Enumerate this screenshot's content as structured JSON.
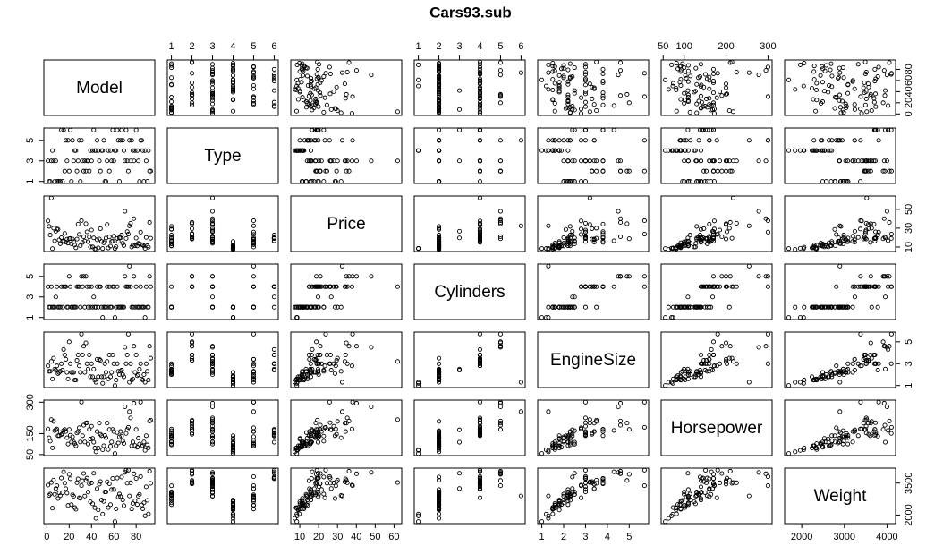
{
  "chart_data": {
    "type": "scatter-matrix",
    "title": "Cars93.sub",
    "point_color": "#000000",
    "variables": [
      {
        "name": "Model",
        "lim": [
          -2.7,
          96.7
        ],
        "xticks": [
          0,
          20,
          40,
          60,
          80
        ],
        "yticks": [
          0,
          20,
          40,
          60,
          80
        ],
        "values": [
          49,
          54,
          9,
          1,
          6,
          24,
          56,
          73,
          72,
          35,
          78,
          22,
          30,
          17,
          58,
          59,
          15,
          20,
          31,
          27,
          52,
          48,
          26,
          79,
          83,
          21,
          37,
          84,
          86,
          93,
          44,
          41,
          90,
          64,
          68,
          13,
          89,
          33,
          61,
          85,
          66,
          25,
          11,
          43,
          39,
          76,
          82,
          70,
          40,
          75,
          28,
          92,
          5,
          69,
          7,
          63,
          74,
          2,
          4,
          19,
          32,
          62,
          36,
          77,
          14,
          71,
          60,
          12,
          34,
          80,
          38,
          51,
          55,
          87,
          45,
          47,
          16,
          10,
          81,
          50,
          57,
          53,
          88,
          91,
          23,
          18,
          67,
          46,
          42,
          65,
          29,
          3,
          8
        ]
      },
      {
        "name": "Type",
        "lim": [
          0.8,
          6.2
        ],
        "xticks": [
          1,
          2,
          3,
          4,
          5,
          6
        ],
        "yticks": [
          1,
          3,
          5
        ],
        "values": [
          4,
          3,
          1,
          3,
          3,
          3,
          2,
          2,
          3,
          2,
          3,
          1,
          1,
          5,
          3,
          6,
          6,
          2,
          5,
          2,
          1,
          2,
          4,
          4,
          1,
          6,
          3,
          5,
          4,
          2,
          4,
          4,
          1,
          5,
          5,
          6,
          3,
          2,
          4,
          5,
          5,
          4,
          1,
          4,
          4,
          5,
          3,
          3,
          3,
          3,
          3,
          2,
          4,
          4,
          1,
          6,
          5,
          1,
          3,
          5,
          3,
          4,
          3,
          4,
          1,
          6,
          3,
          1,
          3,
          6,
          2,
          5,
          4,
          1,
          5,
          3,
          2,
          1,
          4,
          4,
          4,
          1,
          4,
          4,
          5,
          3,
          6,
          4,
          6,
          1,
          5,
          1,
          3
        ]
      },
      {
        "name": "Price",
        "lim": [
          5.22,
          64.08
        ],
        "xticks": [
          10,
          20,
          30,
          40,
          50,
          60
        ],
        "yticks": [
          10,
          30,
          50
        ],
        "values": [
          15.9,
          33.9,
          29.1,
          37.7,
          30,
          15.7,
          20.8,
          23.7,
          26.3,
          34.7,
          40.1,
          13.4,
          11.4,
          15.1,
          15.9,
          16.3,
          16.6,
          18.8,
          38,
          18.4,
          15.8,
          29.5,
          9.2,
          11.3,
          13.3,
          19,
          15.6,
          25.8,
          12.2,
          19.3,
          7.4,
          10.1,
          11.3,
          15.9,
          14,
          19.9,
          20.2,
          20.9,
          8.4,
          12.5,
          19.8,
          12.1,
          17.5,
          8,
          10,
          10,
          13.9,
          47.9,
          28,
          35.2,
          34.3,
          36.1,
          8.3,
          11.6,
          16.5,
          19.1,
          32.5,
          31.9,
          61.9,
          14.1,
          14.9,
          10.3,
          26.1,
          11.8,
          15.7,
          19.1,
          21.5,
          13.5,
          16.3,
          19.5,
          20.7,
          14.4,
          9,
          11.1,
          17.7,
          18.5,
          24.4,
          28.7,
          11.1,
          8.4,
          10.9,
          19.5,
          8.6,
          9.8,
          18.4,
          18.2,
          22.7,
          9.1,
          19.7,
          20,
          23.3,
          22.7,
          26.7
        ]
      },
      {
        "name": "Cylinders",
        "lim": [
          0.8,
          6.2
        ],
        "xticks": [
          1,
          2,
          3,
          4,
          5,
          6
        ],
        "yticks": [
          1,
          3,
          5
        ],
        "values": [
          2,
          4,
          4,
          4,
          2,
          2,
          4,
          4,
          4,
          5,
          5,
          2,
          2,
          4,
          2,
          4,
          4,
          5,
          5,
          4,
          2,
          4,
          2,
          2,
          2,
          4,
          2,
          4,
          2,
          4,
          2,
          2,
          2,
          2,
          2,
          4,
          4,
          5,
          1,
          2,
          2,
          2,
          2,
          2,
          2,
          2,
          2,
          5,
          4,
          4,
          4,
          5,
          2,
          2,
          2,
          4,
          6,
          2,
          4,
          2,
          4,
          2,
          4,
          2,
          2,
          4,
          4,
          2,
          2,
          4,
          4,
          2,
          2,
          2,
          4,
          4,
          4,
          2,
          2,
          1,
          2,
          2,
          1,
          2,
          2,
          2,
          2,
          2,
          3,
          2,
          4,
          2,
          3
        ]
      },
      {
        "name": "EngineSize",
        "lim": [
          0.812,
          5.888
        ],
        "xticks": [
          1,
          2,
          3,
          4,
          5
        ],
        "yticks": [
          1,
          3,
          5
        ],
        "values": [
          1.8,
          3.2,
          2.8,
          2.8,
          3.5,
          2.2,
          3.8,
          5.7,
          3.8,
          4.9,
          4.6,
          2.2,
          2.2,
          3.4,
          2.2,
          3.8,
          4.3,
          5,
          5.7,
          3.3,
          3,
          3.3,
          1.5,
          2.2,
          2.5,
          3,
          2.5,
          3,
          1.5,
          3.5,
          1.3,
          1.8,
          2.3,
          2.3,
          2,
          3,
          3,
          4.6,
          1,
          1.6,
          2.3,
          1.5,
          2.2,
          1.5,
          1.8,
          1.5,
          2,
          4.5,
          3,
          3,
          3.8,
          4.6,
          1.6,
          1.8,
          2.5,
          3,
          1.3,
          2.3,
          3.2,
          1.6,
          3.8,
          1.5,
          3,
          1.6,
          2.4,
          3,
          3,
          2.3,
          2.2,
          3.8,
          3.8,
          1.8,
          1.6,
          2,
          3.4,
          3.4,
          3.8,
          2.1,
          1.9,
          1.2,
          1.8,
          2.2,
          1.3,
          1.5,
          2.2,
          2.2,
          2.4,
          1.8,
          2.5,
          2,
          2.8,
          2.3,
          2.4
        ]
      },
      {
        "name": "Horsepower",
        "lim": [
          45.2,
          309.8
        ],
        "xticks": [
          50,
          100,
          200,
          300
        ],
        "yticks": [
          50,
          150,
          300
        ],
        "values": [
          140,
          200,
          172,
          172,
          208,
          110,
          170,
          180,
          170,
          200,
          295,
          110,
          110,
          160,
          110,
          170,
          165,
          170,
          300,
          153,
          141,
          147,
          92,
          93,
          100,
          142,
          100,
          300,
          92,
          214,
          63,
          127,
          96,
          105,
          115,
          145,
          140,
          190,
          55,
          90,
          160,
          102,
          140,
          81,
          124,
          92,
          128,
          278,
          185,
          225,
          160,
          210,
          82,
          103,
          164,
          155,
          255,
          130,
          217,
          100,
          140,
          92,
          202,
          110,
          150,
          151,
          160,
          155,
          110,
          170,
          170,
          92,
          74,
          110,
          160,
          200,
          170,
          140,
          85,
          73,
          90,
          130,
          70,
          82,
          135,
          130,
          138,
          81,
          109,
          134,
          178,
          114,
          168
        ]
      },
      {
        "name": "Weight",
        "lim": [
          1598.6,
          4201.4
        ],
        "xticks": [
          2000,
          3000,
          4000
        ],
        "yticks": [
          2000,
          3500
        ],
        "values": [
          2705,
          3560,
          3375,
          3405,
          3640,
          2880,
          3470,
          4105,
          3495,
          3620,
          3935,
          2490,
          2785,
          3240,
          3195,
          3715,
          4025,
          3910,
          3380,
          3515,
          3085,
          3570,
          2270,
          2670,
          2970,
          3705,
          3080,
          3805,
          2295,
          3490,
          1845,
          2530,
          2690,
          2850,
          2710,
          3735,
          3325,
          3950,
          1695,
          2475,
          2865,
          2350,
          3040,
          2345,
          2620,
          2285,
          2885,
          4000,
          3510,
          3515,
          3695,
          4055,
          2325,
          2440,
          2970,
          3735,
          2895,
          2920,
          3525,
          2450,
          3610,
          2295,
          3730,
          2545,
          3050,
          4100,
          3200,
          2910,
          2890,
          3715,
          3470,
          2640,
          2350,
          2575,
          3240,
          3450,
          3495,
          2775,
          2495,
          2045,
          2490,
          3085,
          1965,
          2055,
          2950,
          3030,
          3785,
          2240,
          3960,
          2985,
          2810,
          2985,
          3245
        ]
      }
    ]
  }
}
